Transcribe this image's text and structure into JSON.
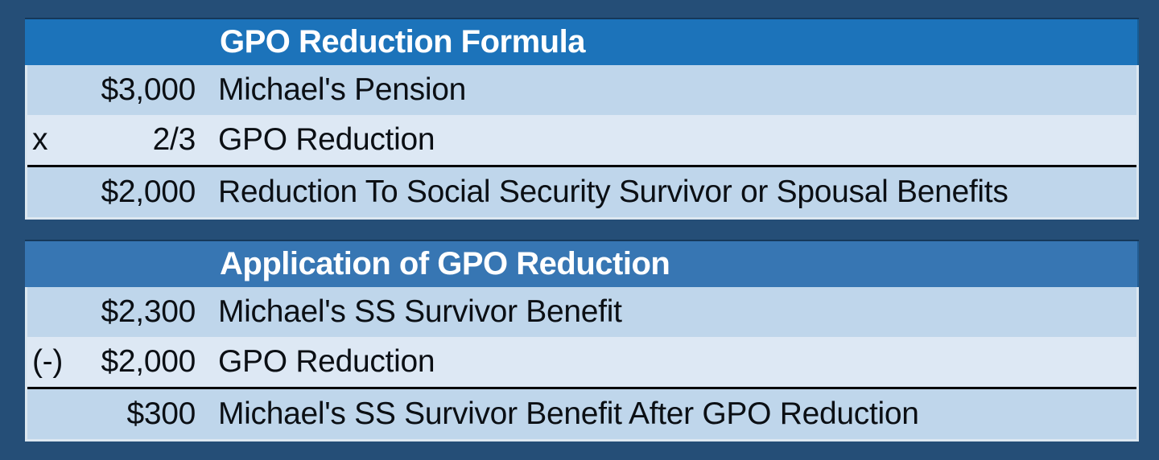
{
  "page": {
    "background_color": "#254E77",
    "text_color": "#0B0F14",
    "row_band_colors": [
      "#BFD6EB",
      "#DDE8F4"
    ],
    "total_line_color": "#000000",
    "header_text_color": "#FFFFFF"
  },
  "tables": [
    {
      "title": "GPO Reduction Formula",
      "header_color": "#1C73BA",
      "rows": [
        {
          "op": "",
          "value": "$3,000",
          "label": "Michael's Pension",
          "total": false
        },
        {
          "op": "x",
          "value": "2/3",
          "label": "GPO Reduction",
          "total": false
        },
        {
          "op": "",
          "value": "$2,000",
          "label": "Reduction To Social Security Survivor or Spousal Benefits",
          "total": true
        }
      ]
    },
    {
      "title": "Application of GPO Reduction",
      "header_color": "#3776B3",
      "rows": [
        {
          "op": "",
          "value": "$2,300",
          "label": "Michael's SS Survivor Benefit",
          "total": false
        },
        {
          "op": "(-)",
          "value": "$2,000",
          "label": "GPO Reduction",
          "total": false
        },
        {
          "op": "",
          "value": "$300",
          "label": "Michael's SS Survivor Benefit After GPO Reduction",
          "total": true
        }
      ]
    }
  ]
}
